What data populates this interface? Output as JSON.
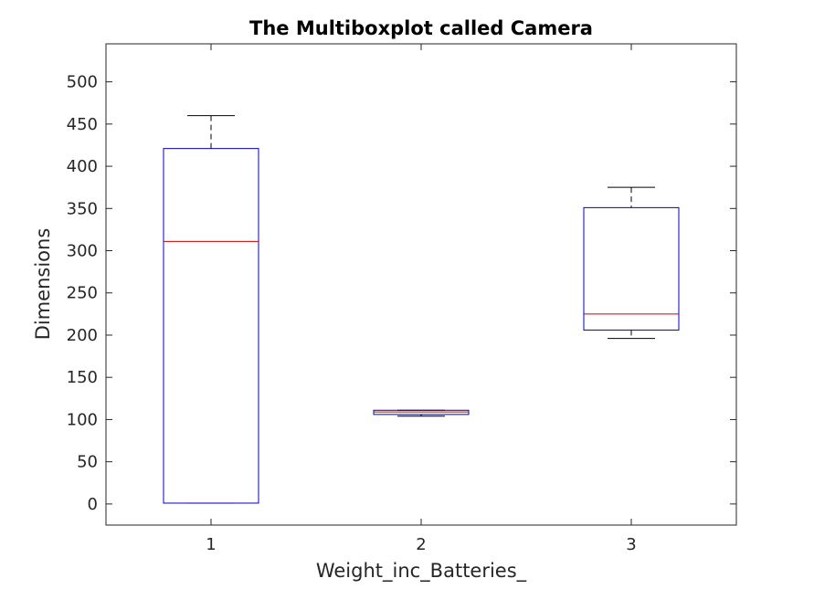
{
  "chart_data": {
    "type": "boxplot",
    "title": "The Multiboxplot called Camera",
    "xlabel": "Weight_inc_Batteries_",
    "ylabel": "Dimensions",
    "categories": [
      "1",
      "2",
      "3"
    ],
    "ylim": [
      -25,
      545
    ],
    "yticks": [
      0,
      50,
      100,
      150,
      200,
      250,
      300,
      350,
      400,
      450,
      500
    ],
    "ytick_labels": [
      "0",
      "50",
      "100",
      "150",
      "200",
      "250",
      "300",
      "350",
      "400",
      "450",
      "500"
    ],
    "boxes": [
      {
        "category": "1",
        "whisker_low": 1,
        "q1": 1,
        "median": 311,
        "q3": 421,
        "whisker_high": 460
      },
      {
        "category": "2",
        "whisker_low": 104,
        "q1": 106,
        "median": 109,
        "q3": 111,
        "whisker_high": 111
      },
      {
        "category": "3",
        "whisker_low": 196,
        "q1": 206,
        "median": 225,
        "q3": 351,
        "whisker_high": 375
      }
    ],
    "colors": {
      "box": "#0000c8",
      "median": "#c80000",
      "whisker": "#000000",
      "axis": "#262626"
    },
    "grid": false,
    "legend": "none"
  }
}
